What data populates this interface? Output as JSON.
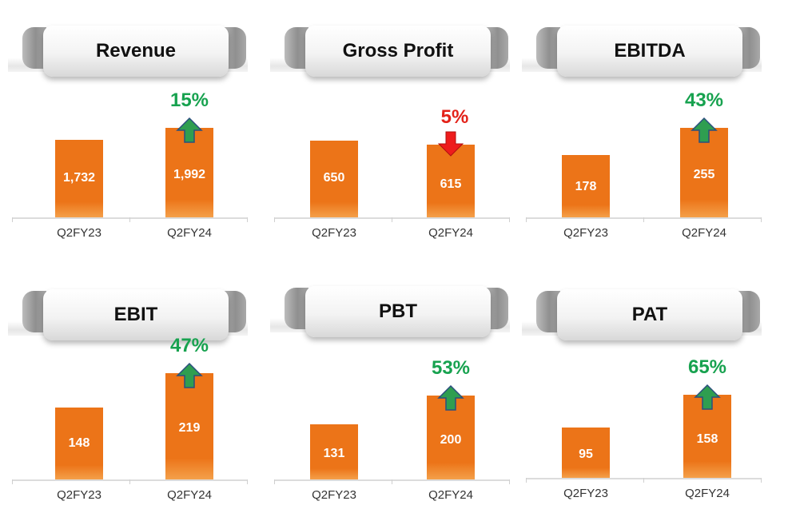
{
  "colors": {
    "bar": "#ec7418",
    "up": "#17a24f",
    "down": "#e32219",
    "up_arrow_fill": "#2f9e50",
    "up_arrow_stroke": "#2b4f7e",
    "down_arrow_fill": "#ee1c1c"
  },
  "chart_data": [
    {
      "type": "bar",
      "title": "Revenue",
      "categories": [
        "Q2FY23",
        "Q2FY24"
      ],
      "values": [
        1732,
        1992
      ],
      "data_labels": [
        "1,732",
        "1,992"
      ],
      "change": "15%",
      "direction": "up"
    },
    {
      "type": "bar",
      "title": "Gross Profit",
      "categories": [
        "Q2FY23",
        "Q2FY24"
      ],
      "values": [
        650,
        615
      ],
      "data_labels": [
        "650",
        "615"
      ],
      "change": "5%",
      "direction": "down"
    },
    {
      "type": "bar",
      "title": "EBITDA",
      "categories": [
        "Q2FY23",
        "Q2FY24"
      ],
      "values": [
        178,
        255
      ],
      "data_labels": [
        "178",
        "255"
      ],
      "change": "43%",
      "direction": "up"
    },
    {
      "type": "bar",
      "title": "EBIT",
      "categories": [
        "Q2FY23",
        "Q2FY24"
      ],
      "values": [
        148,
        219
      ],
      "data_labels": [
        "148",
        "219"
      ],
      "change": "47%",
      "direction": "up"
    },
    {
      "type": "bar",
      "title": "PBT",
      "categories": [
        "Q2FY23",
        "Q2FY24"
      ],
      "values": [
        131,
        200
      ],
      "data_labels": [
        "131",
        "200"
      ],
      "change": "53%",
      "direction": "up"
    },
    {
      "type": "bar",
      "title": "PAT",
      "categories": [
        "Q2FY23",
        "Q2FY24"
      ],
      "values": [
        95,
        158
      ],
      "data_labels": [
        "95",
        "158"
      ],
      "change": "65%",
      "direction": "up"
    }
  ]
}
